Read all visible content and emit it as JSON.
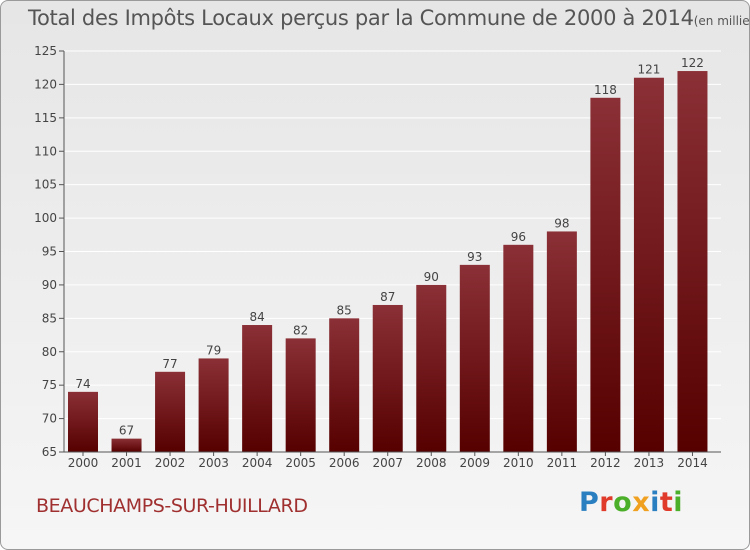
{
  "page": {
    "title": "Total des Impôts Locaux perçus par la Commune de 2000 à 2014",
    "unit": "(en milliers d'€)",
    "commune": "BEAUCHAMPS-SUR-HUILLARD",
    "logo_text": "Proxiti",
    "logo_colors": [
      "#2a7fc0",
      "#e03a2a",
      "#4caf2a",
      "#f0a020",
      "#2a7fc0",
      "#e03a2a",
      "#4caf2a"
    ]
  },
  "chart_data": {
    "type": "bar",
    "title": "Total des Impôts Locaux perçus par la Commune de 2000 à 2014",
    "unit": "(en milliers d'€)",
    "categories": [
      "2000",
      "2001",
      "2002",
      "2003",
      "2004",
      "2005",
      "2006",
      "2007",
      "2008",
      "2009",
      "2010",
      "2011",
      "2012",
      "2013",
      "2014"
    ],
    "values": [
      74,
      67,
      77,
      79,
      84,
      82,
      85,
      87,
      90,
      93,
      96,
      98,
      118,
      121,
      122
    ],
    "ylim": [
      65,
      125
    ],
    "yticks": [
      65,
      70,
      75,
      80,
      85,
      90,
      95,
      100,
      105,
      110,
      115,
      120,
      125
    ],
    "grid": true,
    "legend": "none",
    "bar_color_top": "#8a3036",
    "bar_color_bottom": "#560000"
  }
}
